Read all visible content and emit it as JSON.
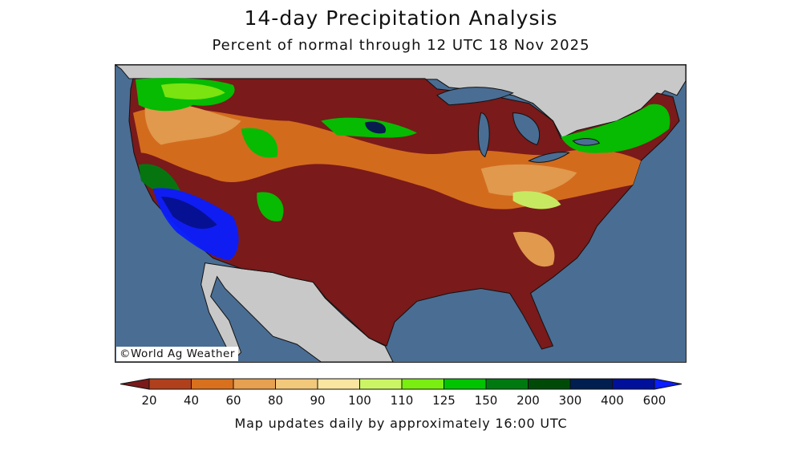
{
  "title": "14-day Precipitation Analysis",
  "subtitle": "Percent of normal through 12 UTC 18 Nov 2025",
  "credit": "©World Ag Weather",
  "footer": "Map updates daily by approximately 16:00 UTC",
  "map_colors": {
    "ocean": "#4a6d93",
    "neighbor_land": "#c8c8c8",
    "border": "#111111"
  },
  "legend": {
    "labels": [
      "20",
      "40",
      "60",
      "80",
      "90",
      "100",
      "110",
      "125",
      "150",
      "200",
      "300",
      "400",
      "600"
    ],
    "colors": [
      "#7a1a1a",
      "#b0401c",
      "#d8701e",
      "#e6a050",
      "#f2c87a",
      "#fbe6a0",
      "#ccf566",
      "#7aee10",
      "#00c400",
      "#007a10",
      "#004a08",
      "#001e50",
      "#00109a",
      "#0a1eff"
    ]
  }
}
